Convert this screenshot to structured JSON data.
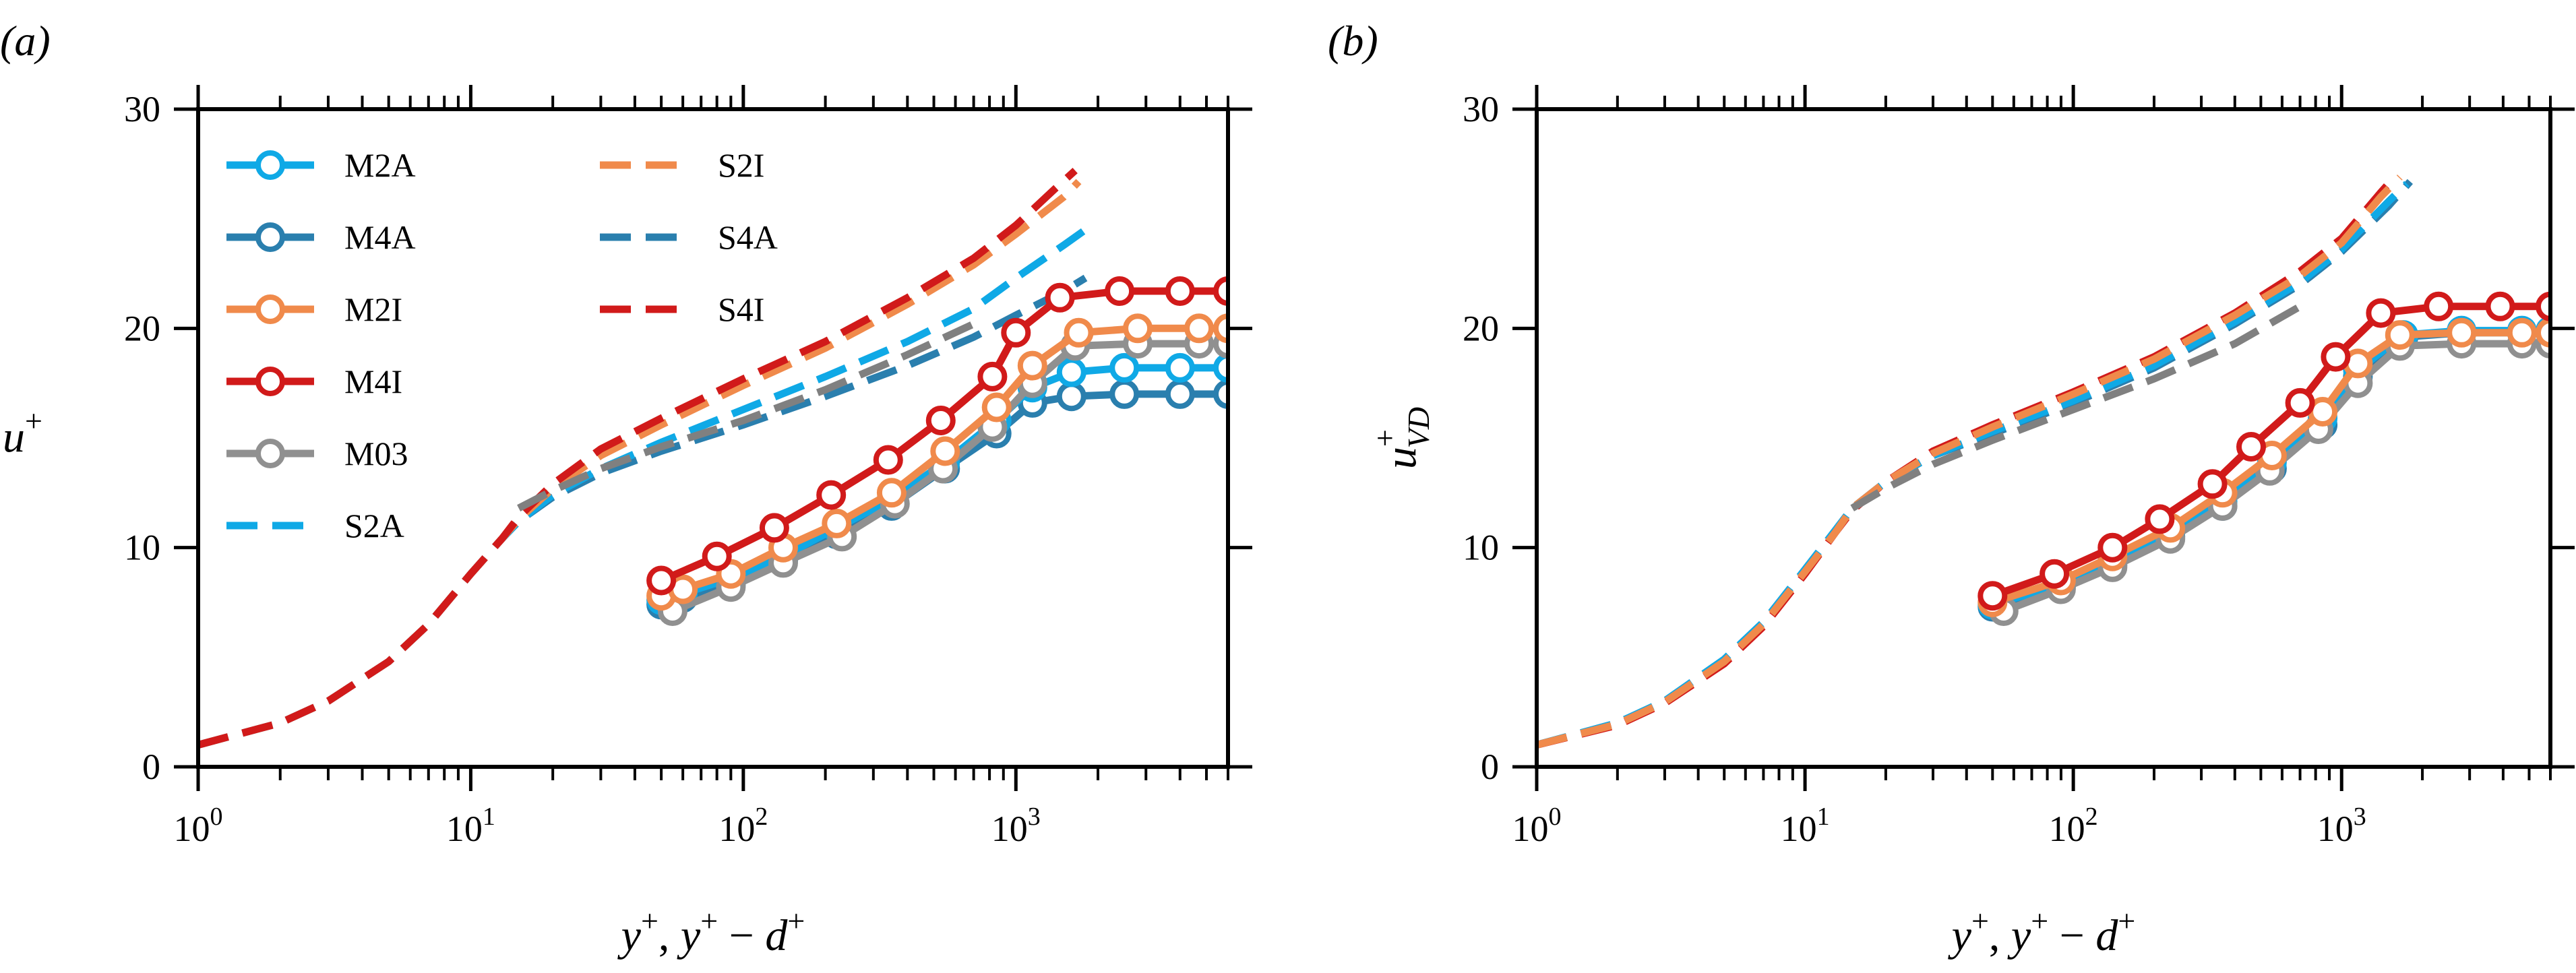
{
  "chart_data": [
    {
      "panel_label": "(a)",
      "type": "line",
      "x_scale": "log",
      "xlim": [
        1,
        6000
      ],
      "ylim": [
        0,
        30
      ],
      "x_ticks": [
        1,
        10,
        100,
        1000
      ],
      "x_tick_labels": [
        {
          "base": "10",
          "exp": "0"
        },
        {
          "base": "10",
          "exp": "1"
        },
        {
          "base": "10",
          "exp": "2"
        },
        {
          "base": "10",
          "exp": "3"
        }
      ],
      "y_ticks": [
        0,
        10,
        20,
        30
      ],
      "y_tick_labels": [
        "0",
        "10",
        "20",
        "30"
      ],
      "xlabel": {
        "y": "y",
        "plus": "+",
        "sep": ", ",
        "minus": " − ",
        "d": "d"
      },
      "ylabel": {
        "base": "u",
        "sup": "+"
      },
      "legend": {
        "placement": "top-left",
        "entries": [
          {
            "label": "M2A",
            "style": "marker",
            "color": "#0fa9e6"
          },
          {
            "label": "M4A",
            "style": "marker",
            "color": "#2a7fae"
          },
          {
            "label": "M2I",
            "style": "marker",
            "color": "#f08a4b"
          },
          {
            "label": "M4I",
            "style": "marker",
            "color": "#d11a1a"
          },
          {
            "label": "M03",
            "style": "marker",
            "color": "#909090"
          },
          {
            "label": "S2A",
            "style": "dash",
            "color": "#0fa9e6"
          },
          {
            "label": "S2I",
            "style": "dash",
            "color": "#f08a4b"
          },
          {
            "label": "S4A",
            "style": "dash",
            "color": "#2a7fae"
          },
          {
            "label": "S4I",
            "style": "dash",
            "color": "#d11a1a"
          }
        ]
      },
      "series": [
        {
          "name": "S4A",
          "style": "dash",
          "color": "#2a7fae",
          "x": [
            1,
            2,
            3,
            5,
            7,
            10,
            13,
            15,
            20,
            30,
            50,
            100,
            200,
            400,
            700,
            1000,
            1500,
            1800
          ],
          "y": [
            1,
            2,
            3,
            4.8,
            6.5,
            8.8,
            10.4,
            11.2,
            12.3,
            13.4,
            14.4,
            15.6,
            16.9,
            18.3,
            19.6,
            20.6,
            21.7,
            22.3
          ]
        },
        {
          "name": "S2A",
          "style": "dash",
          "color": "#0fa9e6",
          "x": [
            1,
            2,
            3,
            5,
            7,
            10,
            13,
            15,
            20,
            30,
            50,
            100,
            200,
            400,
            700,
            1000,
            1500,
            1800
          ],
          "y": [
            1,
            2,
            3,
            4.8,
            6.5,
            8.8,
            10.4,
            11.2,
            12.4,
            13.6,
            14.8,
            16.3,
            17.8,
            19.4,
            20.9,
            22.3,
            23.8,
            24.5
          ]
        },
        {
          "name": "S2I",
          "style": "dash",
          "color": "#f08a4b",
          "x": [
            1,
            2,
            3,
            5,
            7,
            10,
            13,
            15,
            20,
            30,
            50,
            100,
            200,
            400,
            700,
            1000,
            1500,
            1700
          ],
          "y": [
            1,
            2,
            3,
            4.8,
            6.5,
            8.8,
            10.4,
            11.3,
            12.7,
            14.2,
            15.6,
            17.4,
            19.1,
            21.1,
            22.9,
            24.3,
            26.0,
            26.7
          ]
        },
        {
          "name": "S4I",
          "style": "dash",
          "color": "#d11a1a",
          "x": [
            1,
            2,
            3,
            5,
            7,
            10,
            13,
            15,
            20,
            30,
            50,
            100,
            200,
            400,
            700,
            1000,
            1400,
            1650
          ],
          "y": [
            1,
            2,
            3,
            4.8,
            6.5,
            8.8,
            10.4,
            11.4,
            12.9,
            14.5,
            15.9,
            17.7,
            19.4,
            21.4,
            23.2,
            24.7,
            26.4,
            27.2
          ]
        },
        {
          "name": "",
          "style": "dash",
          "color": "#808080",
          "x": [
            15,
            20,
            30,
            50,
            100,
            200,
            400,
            700
          ],
          "y": [
            11.8,
            12.6,
            13.6,
            14.6,
            15.8,
            17.2,
            18.8,
            20.2
          ]
        },
        {
          "name": "M4A",
          "style": "marker",
          "color": "#2a7fae",
          "x": [
            50,
            60,
            90,
            140,
            220,
            350,
            550,
            850,
            1150,
            1600,
            2500,
            4000,
            6000
          ],
          "y": [
            7.4,
            7.7,
            8.3,
            9.4,
            10.6,
            11.9,
            13.6,
            15.2,
            16.6,
            16.9,
            17.0,
            17.0,
            17.0
          ]
        },
        {
          "name": "M2A",
          "style": "marker",
          "color": "#0fa9e6",
          "x": [
            50,
            60,
            90,
            140,
            220,
            350,
            550,
            850,
            1150,
            1600,
            2500,
            4000,
            6000
          ],
          "y": [
            7.6,
            7.9,
            8.6,
            9.6,
            10.9,
            12.2,
            13.9,
            15.8,
            17.3,
            18.0,
            18.2,
            18.2,
            18.2
          ]
        },
        {
          "name": "M03",
          "style": "marker",
          "color": "#909090",
          "x": [
            55,
            90,
            140,
            230,
            360,
            540,
            820,
            1150,
            1650,
            2800,
            4700,
            6000
          ],
          "y": [
            7.1,
            8.2,
            9.3,
            10.5,
            12.0,
            13.6,
            15.5,
            17.5,
            19.2,
            19.3,
            19.3,
            19.3
          ]
        },
        {
          "name": "M2I",
          "style": "marker",
          "color": "#f08a4b",
          "x": [
            50,
            60,
            90,
            140,
            220,
            350,
            550,
            850,
            1150,
            1700,
            2800,
            4700,
            6000
          ],
          "y": [
            7.8,
            8.1,
            8.8,
            10.0,
            11.1,
            12.5,
            14.4,
            16.4,
            18.3,
            19.8,
            20.0,
            20.0,
            20.0
          ]
        },
        {
          "name": "M4I",
          "style": "marker",
          "color": "#d11a1a",
          "x": [
            50,
            80,
            130,
            210,
            340,
            530,
            820,
            1000,
            1450,
            2400,
            4000,
            6000
          ],
          "y": [
            8.5,
            9.6,
            10.9,
            12.4,
            14.0,
            15.8,
            17.8,
            19.8,
            21.4,
            21.7,
            21.7,
            21.7
          ]
        }
      ]
    },
    {
      "panel_label": "(b)",
      "type": "line",
      "x_scale": "log",
      "xlim": [
        1,
        6000
      ],
      "ylim": [
        0,
        30
      ],
      "x_ticks": [
        1,
        10,
        100,
        1000
      ],
      "x_tick_labels": [
        {
          "base": "10",
          "exp": "0"
        },
        {
          "base": "10",
          "exp": "1"
        },
        {
          "base": "10",
          "exp": "2"
        },
        {
          "base": "10",
          "exp": "3"
        }
      ],
      "y_ticks": [
        0,
        10,
        20,
        30
      ],
      "y_tick_labels": [
        "0",
        "10",
        "20",
        "30"
      ],
      "xlabel": {
        "y": "y",
        "plus": "+",
        "sep": ", ",
        "minus": " − ",
        "d": "d"
      },
      "ylabel": {
        "base": "u",
        "sup": "+",
        "sub": "VD"
      },
      "series": [
        {
          "name": "S4A",
          "style": "dash",
          "color": "#2a7fae",
          "x": [
            1,
            2,
            3,
            5,
            7,
            10,
            13,
            15,
            20,
            30,
            50,
            100,
            200,
            400,
            700,
            1000,
            1500,
            1800
          ],
          "y": [
            1,
            2,
            3,
            4.9,
            6.6,
            9.0,
            10.8,
            11.8,
            13.0,
            14.2,
            15.2,
            16.6,
            18.2,
            20.2,
            22.0,
            23.5,
            25.6,
            26.7
          ]
        },
        {
          "name": "S2A",
          "style": "dash",
          "color": "#0fa9e6",
          "x": [
            1,
            2,
            3,
            5,
            7,
            10,
            13,
            15,
            20,
            30,
            50,
            100,
            200,
            400,
            700,
            1000,
            1500,
            1750
          ],
          "y": [
            1,
            2,
            3,
            4.9,
            6.6,
            9.0,
            10.8,
            11.8,
            13.0,
            14.2,
            15.3,
            16.7,
            18.3,
            20.3,
            22.1,
            23.6,
            25.8,
            26.6
          ]
        },
        {
          "name": "S4I",
          "style": "dash",
          "color": "#d11a1a",
          "x": [
            1,
            2,
            3,
            5,
            7,
            10,
            13,
            15,
            20,
            30,
            50,
            100,
            200,
            400,
            700,
            1000,
            1400,
            1600
          ],
          "y": [
            1,
            1.9,
            2.9,
            4.7,
            6.4,
            8.8,
            10.7,
            11.7,
            13.0,
            14.4,
            15.6,
            17.1,
            18.7,
            20.7,
            22.6,
            24.1,
            26.2,
            27.0
          ]
        },
        {
          "name": "S2I",
          "style": "dash",
          "color": "#f08a4b",
          "x": [
            1,
            2,
            3,
            5,
            7,
            10,
            13,
            15,
            20,
            30,
            50,
            100,
            200,
            400,
            700,
            1000,
            1400,
            1650
          ],
          "y": [
            1,
            1.95,
            2.95,
            4.8,
            6.5,
            8.9,
            10.7,
            11.8,
            13.0,
            14.3,
            15.5,
            17.0,
            18.6,
            20.6,
            22.4,
            23.9,
            26.0,
            26.9
          ]
        },
        {
          "name": "",
          "style": "dash",
          "color": "#808080",
          "x": [
            15,
            20,
            30,
            50,
            100,
            200,
            400,
            700
          ],
          "y": [
            11.8,
            12.7,
            13.8,
            14.9,
            16.3,
            17.7,
            19.3,
            21.0
          ]
        },
        {
          "name": "M4A",
          "style": "marker",
          "color": "#2a7fae",
          "x": [
            50,
            90,
            140,
            230,
            360,
            550,
            850,
            1150,
            1700,
            2800,
            4700,
            6000
          ],
          "y": [
            7.3,
            8.2,
            9.2,
            10.5,
            11.9,
            13.6,
            15.6,
            17.8,
            19.6,
            19.8,
            19.8,
            19.8
          ]
        },
        {
          "name": "M2A",
          "style": "marker",
          "color": "#0fa9e6",
          "x": [
            50,
            90,
            140,
            230,
            360,
            550,
            850,
            1150,
            1700,
            2800,
            4700,
            6000
          ],
          "y": [
            7.4,
            8.3,
            9.4,
            10.7,
            12.1,
            13.9,
            15.9,
            18.1,
            19.7,
            19.9,
            19.9,
            19.9
          ]
        },
        {
          "name": "M03",
          "style": "marker",
          "color": "#909090",
          "x": [
            55,
            90,
            140,
            230,
            360,
            540,
            820,
            1150,
            1650,
            2800,
            4700,
            6000
          ],
          "y": [
            7.1,
            8.1,
            9.1,
            10.4,
            11.9,
            13.5,
            15.4,
            17.5,
            19.2,
            19.3,
            19.3,
            19.3
          ]
        },
        {
          "name": "M2I",
          "style": "marker",
          "color": "#f08a4b",
          "x": [
            50,
            90,
            140,
            230,
            360,
            550,
            850,
            1150,
            1650,
            2800,
            4700,
            6000
          ],
          "y": [
            7.5,
            8.5,
            9.6,
            10.9,
            12.5,
            14.2,
            16.2,
            18.4,
            19.7,
            19.8,
            19.8,
            19.8
          ]
        },
        {
          "name": "M4I",
          "style": "marker",
          "color": "#d11a1a",
          "x": [
            50,
            85,
            140,
            210,
            330,
            460,
            700,
            950,
            1400,
            2300,
            3900,
            6000
          ],
          "y": [
            7.8,
            8.8,
            10.0,
            11.3,
            12.9,
            14.6,
            16.6,
            18.7,
            20.7,
            21.0,
            21.0,
            21.0
          ]
        }
      ]
    }
  ]
}
